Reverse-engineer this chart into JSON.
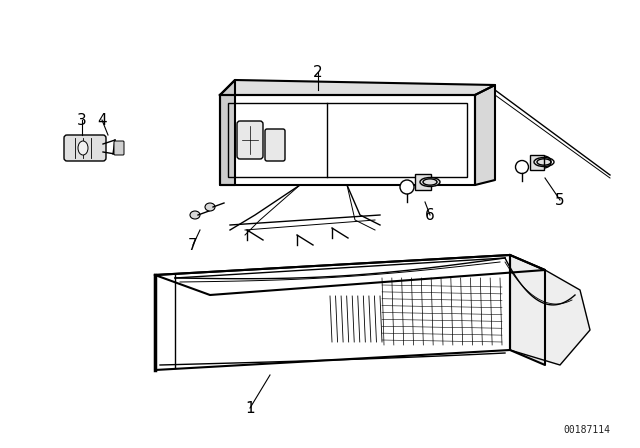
{
  "bg_color": "#ffffff",
  "line_color": "#000000",
  "text_color": "#000000",
  "watermark": "00187114",
  "fig_width": 6.4,
  "fig_height": 4.48,
  "dpi": 100
}
